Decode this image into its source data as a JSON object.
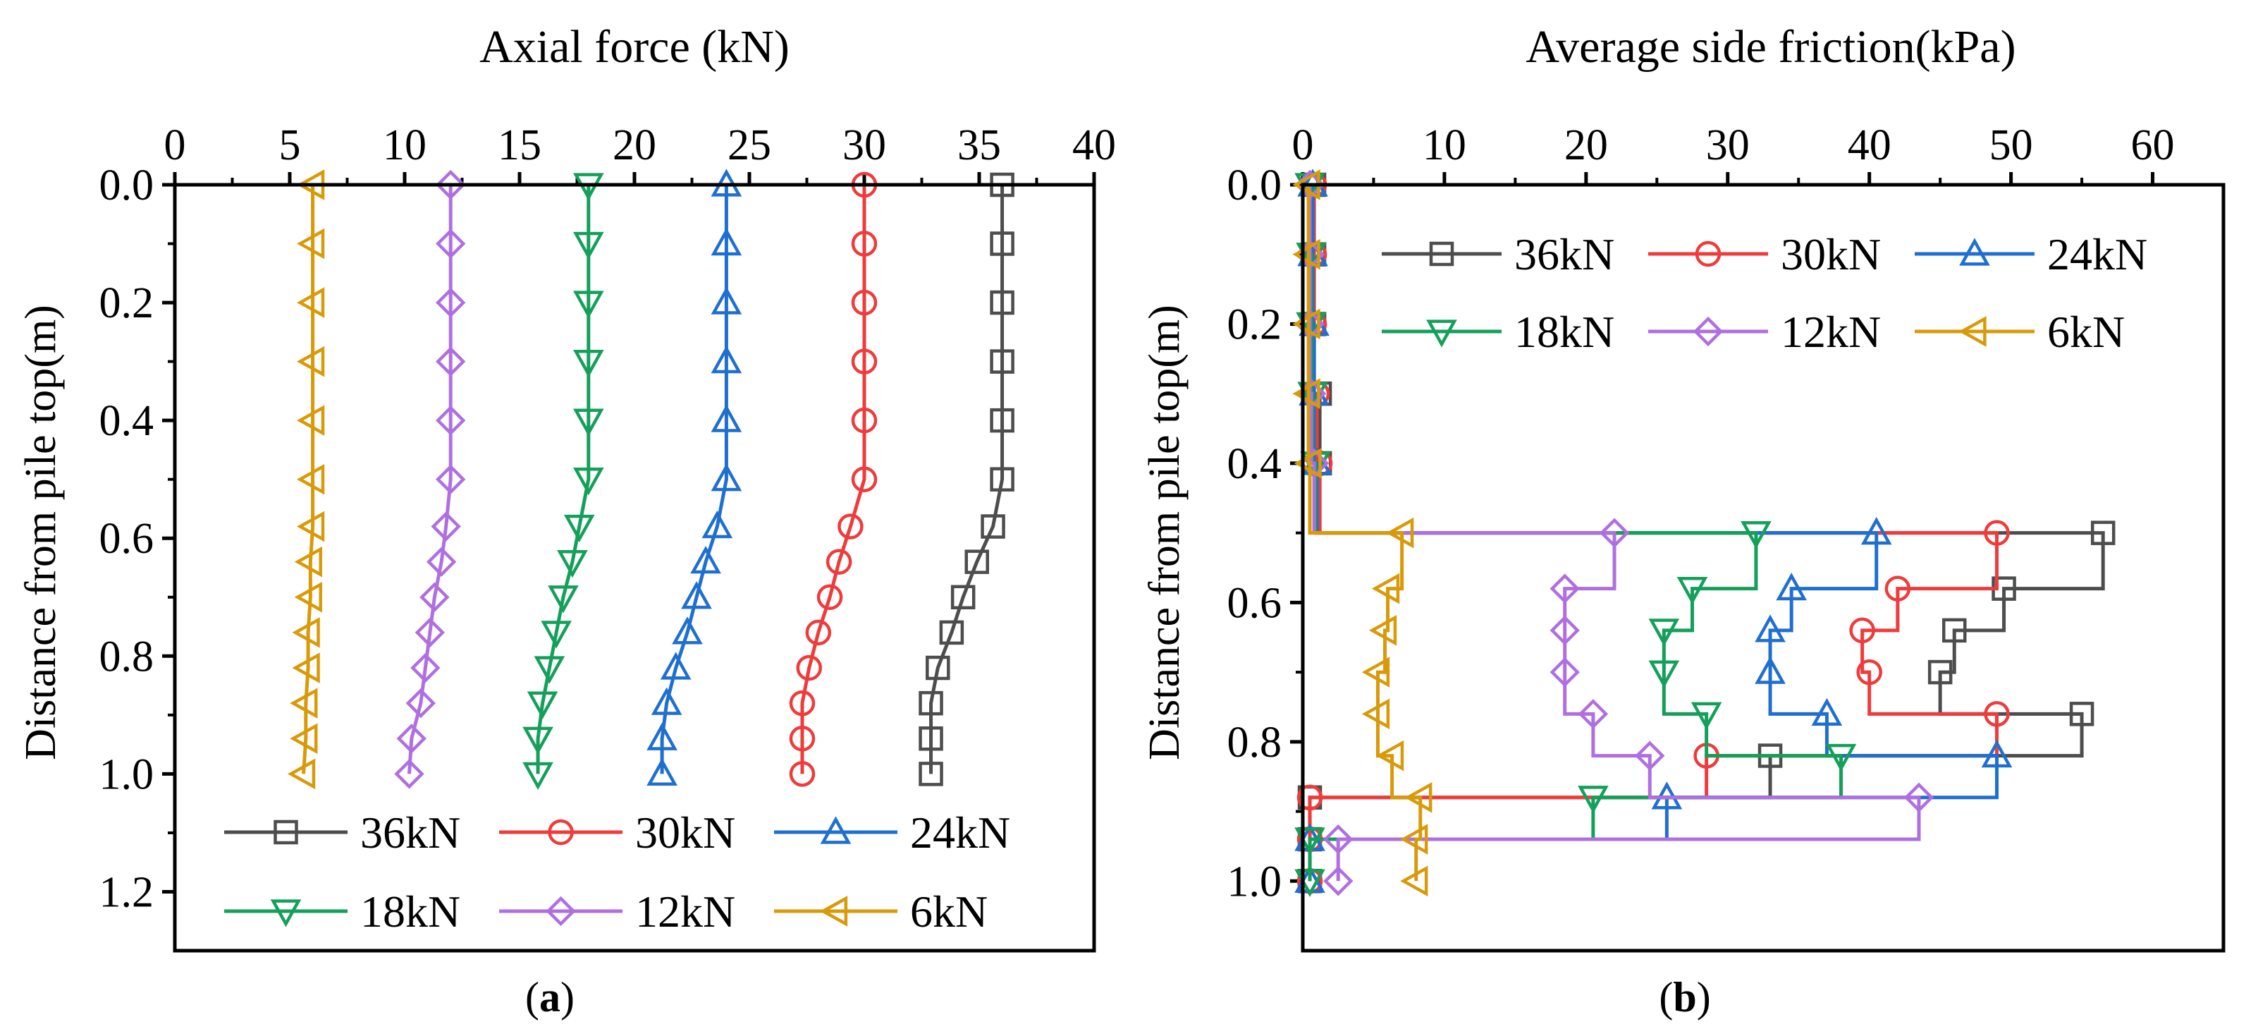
{
  "chart_data": [
    {
      "type": "line",
      "panel": "a",
      "caption_paren_open": "(",
      "caption_letter": "a",
      "caption_paren_close": ")",
      "title": "Axial force (kN)",
      "xlabel": "Axial force (kN)",
      "ylabel": "Distance from pile top(m)",
      "xlim": [
        0,
        40
      ],
      "ylim": [
        0,
        1.3
      ],
      "y_inverted": true,
      "x_axis_position": "top",
      "x_ticks": [
        0,
        5,
        10,
        15,
        20,
        25,
        30,
        35,
        40
      ],
      "x_tick_labels": [
        "0",
        "5",
        "10",
        "15",
        "20",
        "25",
        "30",
        "35",
        "40"
      ],
      "y_ticks": [
        0,
        0.2,
        0.4,
        0.6,
        0.8,
        1.0,
        1.2
      ],
      "y_tick_labels": [
        "0.0",
        "0.2",
        "0.4",
        "0.6",
        "0.8",
        "1.0",
        "1.2"
      ],
      "legend_position": "bottom",
      "series": [
        {
          "name": "36kN",
          "color": "#4d4d4d",
          "marker": "square",
          "y": [
            0,
            0.1,
            0.2,
            0.3,
            0.4,
            0.5,
            0.58,
            0.64,
            0.7,
            0.76,
            0.82,
            0.88,
            0.94,
            1.0
          ],
          "x": [
            36.0,
            36.0,
            36.0,
            36.0,
            36.0,
            36.0,
            35.6,
            34.9,
            34.3,
            33.8,
            33.2,
            32.9,
            32.9,
            32.9
          ]
        },
        {
          "name": "30kN",
          "color": "#ef3b3b",
          "marker": "circle",
          "y": [
            0,
            0.1,
            0.2,
            0.3,
            0.4,
            0.5,
            0.58,
            0.64,
            0.7,
            0.76,
            0.82,
            0.88,
            0.94,
            1.0
          ],
          "x": [
            30.0,
            30.0,
            30.0,
            30.0,
            30.0,
            30.0,
            29.4,
            28.9,
            28.5,
            28.0,
            27.6,
            27.3,
            27.3,
            27.3
          ]
        },
        {
          "name": "24kN",
          "color": "#1f6fd1",
          "marker": "triangle-up",
          "y": [
            0,
            0.1,
            0.2,
            0.3,
            0.4,
            0.5,
            0.58,
            0.64,
            0.7,
            0.76,
            0.82,
            0.88,
            0.94,
            1.0
          ],
          "x": [
            24.0,
            24.0,
            24.0,
            24.0,
            24.0,
            24.0,
            23.6,
            23.1,
            22.7,
            22.3,
            21.8,
            21.4,
            21.2,
            21.2
          ]
        },
        {
          "name": "18kN",
          "color": "#14a05a",
          "marker": "triangle-down",
          "y": [
            0,
            0.1,
            0.2,
            0.3,
            0.4,
            0.5,
            0.58,
            0.64,
            0.7,
            0.76,
            0.82,
            0.88,
            0.94,
            1.0
          ],
          "x": [
            18.0,
            18.0,
            18.0,
            18.0,
            18.0,
            18.0,
            17.6,
            17.3,
            16.9,
            16.6,
            16.3,
            16.0,
            15.8,
            15.8
          ]
        },
        {
          "name": "12kN",
          "color": "#b06fe0",
          "marker": "diamond",
          "y": [
            0,
            0.1,
            0.2,
            0.3,
            0.4,
            0.5,
            0.58,
            0.64,
            0.7,
            0.76,
            0.82,
            0.88,
            0.94,
            1.0
          ],
          "x": [
            12.0,
            12.0,
            12.0,
            12.0,
            12.0,
            12.0,
            11.8,
            11.6,
            11.3,
            11.1,
            10.9,
            10.7,
            10.3,
            10.2
          ]
        },
        {
          "name": "6kN",
          "color": "#d99a0a",
          "marker": "triangle-left",
          "y": [
            0,
            0.1,
            0.2,
            0.3,
            0.4,
            0.5,
            0.58,
            0.64,
            0.7,
            0.76,
            0.82,
            0.88,
            0.94,
            1.0
          ],
          "x": [
            6.0,
            6.0,
            6.0,
            6.0,
            6.0,
            6.0,
            6.0,
            5.9,
            5.9,
            5.8,
            5.8,
            5.7,
            5.7,
            5.6
          ]
        }
      ]
    },
    {
      "type": "line",
      "panel": "b",
      "caption_paren_open": "(",
      "caption_letter": "b",
      "caption_paren_close": ")",
      "title": "Average side friction(kPa)",
      "xlabel": "Average side friction(kPa)",
      "ylabel": "Distance from pile top(m)",
      "xlim": [
        0,
        65
      ],
      "ylim": [
        0,
        1.1
      ],
      "y_inverted": true,
      "x_axis_position": "top",
      "x_ticks": [
        0,
        10,
        20,
        30,
        40,
        50,
        60
      ],
      "x_tick_labels": [
        "0",
        "10",
        "20",
        "30",
        "40",
        "50",
        "60"
      ],
      "y_ticks": [
        0,
        0.2,
        0.4,
        0.6,
        0.8,
        1.0
      ],
      "y_tick_labels": [
        "0.0",
        "0.2",
        "0.4",
        "0.6",
        "0.8",
        "1.0"
      ],
      "legend_position": "top",
      "step": true,
      "series": [
        {
          "name": "36kN",
          "color": "#4d4d4d",
          "marker": "square",
          "y": [
            0,
            0.1,
            0.2,
            0.3,
            0.4,
            0.5,
            0.58,
            0.64,
            0.7,
            0.76,
            0.82,
            0.88,
            0.94,
            1.0
          ],
          "x": [
            0.8,
            0.8,
            0.8,
            1.2,
            1.2,
            56.5,
            49.5,
            46.0,
            45.0,
            55.0,
            33.0,
            0.5,
            0.5,
            0.5
          ]
        },
        {
          "name": "30kN",
          "color": "#ef3b3b",
          "marker": "circle",
          "y": [
            0,
            0.1,
            0.2,
            0.3,
            0.4,
            0.5,
            0.58,
            0.64,
            0.7,
            0.76,
            0.82,
            0.88,
            0.94,
            1.0
          ],
          "x": [
            0.8,
            0.8,
            0.8,
            1.0,
            1.2,
            49.0,
            42.0,
            39.5,
            40.0,
            49.0,
            28.5,
            0.5,
            0.5,
            0.5
          ]
        },
        {
          "name": "24kN",
          "color": "#1f6fd1",
          "marker": "triangle-up",
          "y": [
            0,
            0.1,
            0.2,
            0.3,
            0.4,
            0.5,
            0.58,
            0.64,
            0.7,
            0.76,
            0.82,
            0.88,
            0.94,
            1.0
          ],
          "x": [
            0.7,
            0.7,
            0.8,
            0.8,
            1.0,
            40.5,
            34.5,
            33.0,
            33.0,
            37.0,
            49.0,
            25.7,
            0.5,
            0.5
          ]
        },
        {
          "name": "18kN",
          "color": "#14a05a",
          "marker": "triangle-down",
          "y": [
            0,
            0.1,
            0.2,
            0.3,
            0.4,
            0.5,
            0.58,
            0.64,
            0.7,
            0.76,
            0.82,
            0.88,
            0.94,
            1.0
          ],
          "x": [
            0.5,
            0.6,
            0.6,
            0.7,
            0.9,
            32.0,
            27.5,
            25.5,
            25.5,
            28.5,
            38.0,
            20.5,
            0.5,
            0.5
          ]
        },
        {
          "name": "12kN",
          "color": "#b06fe0",
          "marker": "diamond",
          "y": [
            0,
            0.1,
            0.2,
            0.3,
            0.4,
            0.5,
            0.58,
            0.64,
            0.7,
            0.76,
            0.82,
            0.88,
            0.94,
            1.0
          ],
          "x": [
            0.5,
            0.5,
            0.5,
            0.6,
            0.8,
            22.0,
            18.5,
            18.5,
            18.5,
            20.5,
            24.5,
            43.5,
            2.5,
            2.5
          ]
        },
        {
          "name": "6kN",
          "color": "#d99a0a",
          "marker": "triangle-left",
          "y": [
            0,
            0.1,
            0.2,
            0.3,
            0.4,
            0.5,
            0.58,
            0.64,
            0.7,
            0.76,
            0.82,
            0.88,
            0.94,
            1.0
          ],
          "x": [
            0.4,
            0.4,
            0.4,
            0.4,
            0.5,
            7.0,
            6.0,
            5.8,
            5.3,
            5.3,
            6.3,
            8.3,
            8.0,
            8.0
          ]
        }
      ]
    }
  ]
}
